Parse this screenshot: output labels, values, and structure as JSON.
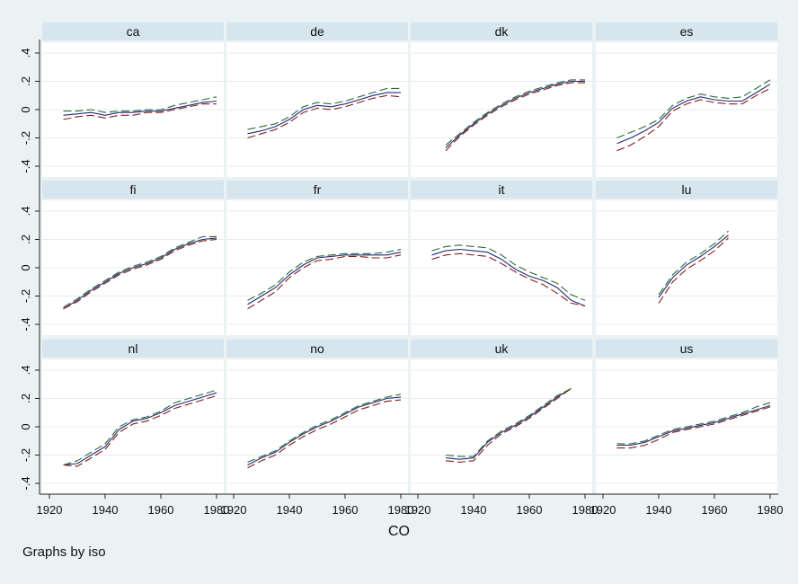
{
  "chart_data": {
    "type": "line",
    "layout": "small-multiples",
    "xlabel": "CO",
    "ylabel": "",
    "note": "Graphs by iso",
    "xlim": [
      1920,
      1980
    ],
    "ylim": [
      -0.4,
      0.4
    ],
    "xticks": [
      1920,
      1940,
      1960,
      1980
    ],
    "yticks": [
      -0.4,
      -0.2,
      0,
      0.2,
      0.4
    ],
    "ytick_labels": [
      "-.4",
      "-.2",
      "0",
      ".2",
      ".4"
    ],
    "grid": true,
    "legend": "none",
    "series_styles": [
      {
        "name": "",
        "color": "#1a2f7a",
        "dash": "none"
      },
      {
        "name": "",
        "color": "#8b1a1a",
        "dash": "long-dash"
      },
      {
        "name": "",
        "color": "#2f6b2f",
        "dash": "long-dash"
      }
    ],
    "panels": [
      {
        "label": "ca",
        "x": [
          1925,
          1930,
          1935,
          1940,
          1945,
          1950,
          1955,
          1960,
          1965,
          1970,
          1975,
          1980
        ],
        "series": [
          [
            -0.04,
            -0.03,
            -0.02,
            -0.04,
            -0.02,
            -0.02,
            -0.01,
            -0.01,
            0.01,
            0.03,
            0.05,
            0.06
          ],
          [
            -0.07,
            -0.05,
            -0.04,
            -0.06,
            -0.04,
            -0.04,
            -0.02,
            -0.02,
            0.0,
            0.02,
            0.04,
            0.04
          ],
          [
            -0.01,
            -0.01,
            0.0,
            -0.02,
            -0.01,
            -0.01,
            0.0,
            0.0,
            0.03,
            0.05,
            0.07,
            0.09
          ]
        ]
      },
      {
        "label": "de",
        "x": [
          1925,
          1930,
          1935,
          1940,
          1945,
          1950,
          1955,
          1960,
          1965,
          1970,
          1975,
          1980
        ],
        "series": [
          [
            -0.17,
            -0.15,
            -0.12,
            -0.07,
            0.0,
            0.03,
            0.02,
            0.04,
            0.07,
            0.1,
            0.12,
            0.12
          ],
          [
            -0.2,
            -0.17,
            -0.14,
            -0.09,
            -0.02,
            0.01,
            0.0,
            0.02,
            0.05,
            0.08,
            0.1,
            0.09
          ],
          [
            -0.14,
            -0.12,
            -0.1,
            -0.05,
            0.02,
            0.05,
            0.04,
            0.06,
            0.09,
            0.12,
            0.15,
            0.15
          ]
        ]
      },
      {
        "label": "dk",
        "x": [
          1930,
          1935,
          1940,
          1945,
          1950,
          1955,
          1960,
          1965,
          1970,
          1975,
          1980
        ],
        "series": [
          [
            -0.27,
            -0.18,
            -0.1,
            -0.03,
            0.03,
            0.08,
            0.12,
            0.15,
            0.18,
            0.2,
            0.2
          ],
          [
            -0.29,
            -0.19,
            -0.11,
            -0.04,
            0.02,
            0.07,
            0.11,
            0.14,
            0.17,
            0.19,
            0.19
          ],
          [
            -0.25,
            -0.17,
            -0.09,
            -0.02,
            0.04,
            0.09,
            0.13,
            0.16,
            0.19,
            0.21,
            0.21
          ]
        ]
      },
      {
        "label": "es",
        "x": [
          1925,
          1930,
          1935,
          1940,
          1945,
          1950,
          1955,
          1960,
          1965,
          1970,
          1975,
          1980
        ],
        "series": [
          [
            -0.24,
            -0.2,
            -0.15,
            -0.09,
            0.01,
            0.06,
            0.09,
            0.07,
            0.06,
            0.06,
            0.12,
            0.18
          ],
          [
            -0.29,
            -0.25,
            -0.19,
            -0.12,
            -0.01,
            0.04,
            0.07,
            0.05,
            0.04,
            0.04,
            0.1,
            0.15
          ],
          [
            -0.2,
            -0.16,
            -0.12,
            -0.07,
            0.03,
            0.08,
            0.11,
            0.09,
            0.08,
            0.09,
            0.15,
            0.21
          ]
        ]
      },
      {
        "label": "fi",
        "x": [
          1925,
          1930,
          1935,
          1940,
          1945,
          1950,
          1955,
          1960,
          1965,
          1970,
          1975,
          1980
        ],
        "series": [
          [
            -0.29,
            -0.23,
            -0.16,
            -0.1,
            -0.04,
            0.0,
            0.03,
            0.07,
            0.13,
            0.17,
            0.2,
            0.21
          ],
          [
            -0.29,
            -0.24,
            -0.17,
            -0.11,
            -0.05,
            -0.01,
            0.02,
            0.06,
            0.12,
            0.16,
            0.19,
            0.2
          ],
          [
            -0.28,
            -0.22,
            -0.15,
            -0.09,
            -0.03,
            0.01,
            0.04,
            0.08,
            0.14,
            0.18,
            0.22,
            0.22
          ]
        ]
      },
      {
        "label": "fr",
        "x": [
          1925,
          1930,
          1935,
          1940,
          1945,
          1950,
          1955,
          1960,
          1965,
          1970,
          1975,
          1980
        ],
        "series": [
          [
            -0.26,
            -0.2,
            -0.14,
            -0.05,
            0.02,
            0.07,
            0.08,
            0.09,
            0.09,
            0.09,
            0.09,
            0.11
          ],
          [
            -0.29,
            -0.23,
            -0.17,
            -0.07,
            0.0,
            0.05,
            0.06,
            0.08,
            0.08,
            0.07,
            0.07,
            0.09
          ],
          [
            -0.23,
            -0.18,
            -0.12,
            -0.03,
            0.04,
            0.08,
            0.09,
            0.1,
            0.1,
            0.1,
            0.11,
            0.13
          ]
        ]
      },
      {
        "label": "it",
        "x": [
          1925,
          1930,
          1935,
          1940,
          1945,
          1950,
          1955,
          1960,
          1965,
          1970,
          1975,
          1980
        ],
        "series": [
          [
            0.09,
            0.12,
            0.13,
            0.12,
            0.11,
            0.06,
            -0.01,
            -0.06,
            -0.09,
            -0.14,
            -0.23,
            -0.27
          ],
          [
            0.06,
            0.09,
            0.1,
            0.09,
            0.08,
            0.03,
            -0.03,
            -0.08,
            -0.12,
            -0.18,
            -0.25,
            -0.27
          ],
          [
            0.12,
            0.15,
            0.16,
            0.15,
            0.14,
            0.09,
            0.02,
            -0.03,
            -0.07,
            -0.11,
            -0.19,
            -0.23
          ]
        ]
      },
      {
        "label": "lu",
        "x": [
          1940,
          1945,
          1950,
          1955,
          1960,
          1965
        ],
        "series": [
          [
            -0.21,
            -0.07,
            0.02,
            0.08,
            0.15,
            0.23
          ],
          [
            -0.25,
            -0.1,
            -0.01,
            0.05,
            0.12,
            0.21
          ],
          [
            -0.19,
            -0.05,
            0.04,
            0.1,
            0.17,
            0.26
          ]
        ]
      },
      {
        "label": "nl",
        "x": [
          1925,
          1930,
          1935,
          1940,
          1945,
          1950,
          1955,
          1960,
          1965,
          1970,
          1975,
          1980
        ],
        "series": [
          [
            -0.27,
            -0.26,
            -0.2,
            -0.14,
            -0.02,
            0.04,
            0.06,
            0.1,
            0.15,
            0.18,
            0.21,
            0.24
          ],
          [
            -0.27,
            -0.28,
            -0.22,
            -0.16,
            -0.04,
            0.02,
            0.04,
            0.08,
            0.13,
            0.16,
            0.19,
            0.22
          ],
          [
            -0.27,
            -0.24,
            -0.18,
            -0.12,
            0.0,
            0.05,
            0.07,
            0.11,
            0.17,
            0.2,
            0.23,
            0.26
          ]
        ]
      },
      {
        "label": "no",
        "x": [
          1925,
          1930,
          1935,
          1940,
          1945,
          1950,
          1955,
          1960,
          1965,
          1970,
          1975,
          1980
        ],
        "series": [
          [
            -0.27,
            -0.22,
            -0.18,
            -0.11,
            -0.05,
            0.0,
            0.04,
            0.09,
            0.14,
            0.17,
            0.2,
            0.21
          ],
          [
            -0.29,
            -0.24,
            -0.2,
            -0.13,
            -0.07,
            -0.02,
            0.02,
            0.07,
            0.12,
            0.15,
            0.18,
            0.19
          ],
          [
            -0.25,
            -0.21,
            -0.17,
            -0.1,
            -0.04,
            0.01,
            0.05,
            0.1,
            0.15,
            0.18,
            0.21,
            0.23
          ]
        ]
      },
      {
        "label": "uk",
        "x": [
          1930,
          1935,
          1940,
          1945,
          1950,
          1955,
          1960,
          1965,
          1970,
          1975
        ],
        "series": [
          [
            -0.22,
            -0.23,
            -0.22,
            -0.11,
            -0.04,
            0.01,
            0.07,
            0.14,
            0.21,
            0.27
          ],
          [
            -0.24,
            -0.25,
            -0.24,
            -0.13,
            -0.05,
            0.0,
            0.06,
            0.13,
            0.2,
            0.27
          ],
          [
            -0.2,
            -0.21,
            -0.21,
            -0.1,
            -0.03,
            0.02,
            0.08,
            0.15,
            0.22,
            0.27
          ]
        ]
      },
      {
        "label": "us",
        "x": [
          1925,
          1930,
          1935,
          1940,
          1945,
          1950,
          1955,
          1960,
          1965,
          1970,
          1975,
          1980
        ],
        "series": [
          [
            -0.13,
            -0.13,
            -0.11,
            -0.07,
            -0.03,
            -0.01,
            0.01,
            0.03,
            0.06,
            0.09,
            0.12,
            0.15
          ],
          [
            -0.15,
            -0.15,
            -0.13,
            -0.09,
            -0.04,
            -0.02,
            0.0,
            0.02,
            0.05,
            0.08,
            0.11,
            0.14
          ],
          [
            -0.12,
            -0.12,
            -0.1,
            -0.06,
            -0.02,
            0.0,
            0.02,
            0.04,
            0.07,
            0.1,
            0.14,
            0.17
          ]
        ]
      }
    ]
  }
}
